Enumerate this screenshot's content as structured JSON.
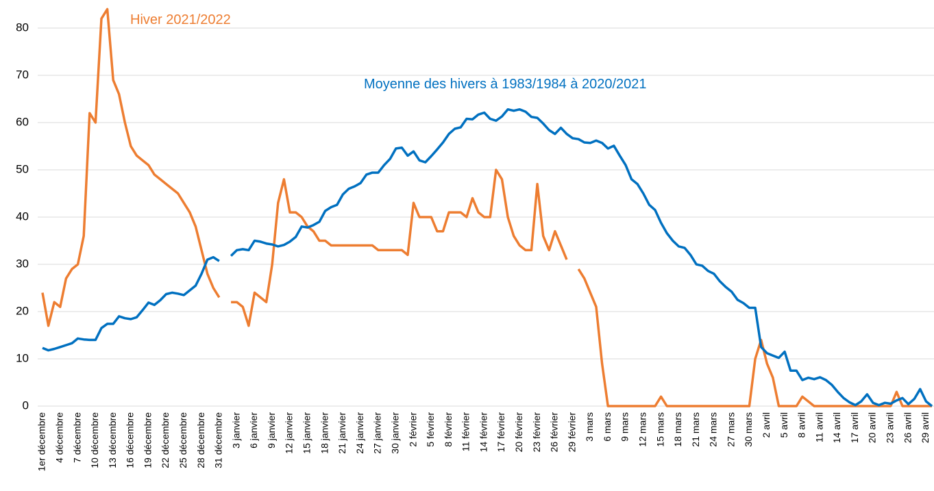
{
  "chart_data": {
    "type": "line",
    "annotations": [
      "Hiver 2021/2022",
      "Moyenne des hivers à 1983/1984 à 2020/2021"
    ],
    "categories": [
      "1er décembre",
      null,
      null,
      "4 décembre",
      null,
      null,
      "7 décembre",
      null,
      null,
      "10 décembre",
      null,
      null,
      "13 décembre",
      null,
      null,
      "16 décembre",
      null,
      null,
      "19 décembre",
      null,
      null,
      "22 décembre",
      null,
      null,
      "25 décembre",
      null,
      null,
      "28 décembre",
      null,
      null,
      "31 décembre",
      null,
      null,
      "3 janvier",
      null,
      null,
      "6 janvier",
      null,
      null,
      "9 janvier",
      null,
      null,
      "12 janvier",
      null,
      null,
      "15 janvier",
      null,
      null,
      "18 janvier",
      null,
      null,
      "21 janvier",
      null,
      null,
      "24 janvier",
      null,
      null,
      "27 janvier",
      null,
      null,
      "30 janvier",
      null,
      null,
      "2 février",
      null,
      null,
      "5 février",
      null,
      null,
      "8 février",
      null,
      null,
      "11 février",
      null,
      null,
      "14 février",
      null,
      null,
      "17 février",
      null,
      null,
      "20 février",
      null,
      null,
      "23 février",
      null,
      null,
      "26 février",
      null,
      null,
      "29 février",
      null,
      null,
      "3 mars",
      null,
      null,
      "6 mars",
      null,
      null,
      "9 mars",
      null,
      null,
      "12 mars",
      null,
      null,
      "15 mars",
      null,
      null,
      "18 mars",
      null,
      null,
      "21 mars",
      null,
      null,
      "24 mars",
      null,
      null,
      "27 mars",
      null,
      null,
      "30 mars",
      null,
      null,
      "2 avril",
      null,
      null,
      "5 avril",
      null,
      null,
      "8 avril",
      null,
      null,
      "11 avril",
      null,
      null,
      "14 avril",
      null,
      null,
      "17 avril",
      null,
      null,
      "20 avril",
      null,
      null,
      "23 avril",
      null,
      null,
      "26 avril",
      null,
      null,
      "29 avril",
      null
    ],
    "series": [
      {
        "name": "Hiver 2021/2022",
        "color": "#ed7d31",
        "values": [
          24,
          17,
          22,
          21,
          27,
          29,
          30,
          36,
          62,
          60,
          82,
          84,
          69,
          66,
          60,
          55,
          53,
          52,
          51,
          49,
          48,
          47,
          46,
          45,
          43,
          41,
          38,
          33,
          28,
          25,
          23,
          null,
          22,
          22,
          21,
          17,
          24,
          23,
          22,
          30,
          43,
          48,
          41,
          41,
          40,
          38,
          37,
          35,
          35,
          34,
          34,
          34,
          34,
          34,
          34,
          34,
          34,
          33,
          33,
          33,
          33,
          33,
          32,
          43,
          40,
          40,
          40,
          37,
          37,
          41,
          41,
          41,
          40,
          44,
          41,
          40,
          40,
          50,
          48,
          40,
          36,
          34,
          33,
          33,
          47,
          36,
          33,
          37,
          34,
          31,
          null,
          29,
          27,
          24,
          21,
          9,
          0,
          0,
          0,
          0,
          0,
          0,
          0,
          0,
          0,
          2,
          0,
          0,
          0,
          0,
          0,
          0,
          0,
          0,
          0,
          0,
          0,
          0,
          0,
          0,
          0,
          10,
          14,
          9,
          6,
          0,
          0,
          0,
          0,
          2,
          1,
          0,
          0,
          0,
          0,
          0,
          0,
          0,
          0,
          0,
          0,
          0,
          0,
          0,
          0,
          3,
          0,
          0,
          0,
          0,
          0,
          0
        ]
      },
      {
        "name": "Moyenne des hivers à 1983/1984 à 2020/2021",
        "color": "#0070c0",
        "values": [
          12.3,
          11.8,
          12.1,
          12.5,
          12.9,
          13.3,
          14.3,
          14.1,
          14.0,
          14.0,
          16.5,
          17.4,
          17.4,
          19,
          18.6,
          18.4,
          18.8,
          20.3,
          21.9,
          21.4,
          22.4,
          23.7,
          24,
          23.8,
          23.5,
          24.5,
          25.5,
          28,
          31,
          31.5,
          30.7,
          null,
          31.8,
          33,
          33.2,
          33,
          35,
          34.8,
          34.4,
          34.2,
          33.8,
          34.1,
          34.8,
          35.8,
          38,
          37.8,
          38.3,
          39,
          41.3,
          42.1,
          42.6,
          44.8,
          46,
          46.5,
          47.2,
          49,
          49.4,
          49.4,
          51,
          52.3,
          54.5,
          54.7,
          53,
          53.9,
          52,
          51.6,
          52.9,
          54.3,
          55.8,
          57.6,
          58.7,
          59,
          60.8,
          60.7,
          61.7,
          62.1,
          60.8,
          60.4,
          61.3,
          62.8,
          62.5,
          62.8,
          62.3,
          61.2,
          61,
          59.8,
          58.4,
          57.6,
          58.9,
          57.6,
          56.7,
          56.5,
          55.8,
          55.7,
          56.2,
          55.7,
          54.5,
          55.1,
          53,
          51,
          48,
          47,
          45,
          42.6,
          41.5,
          38.8,
          36.6,
          35,
          33.8,
          33.5,
          32,
          30,
          29.7,
          28.6,
          28,
          26.4,
          25.2,
          24.2,
          22.5,
          21.8,
          20.8,
          20.8,
          12.5,
          11.2,
          10.7,
          10.2,
          11.5,
          7.5,
          7.5,
          5.5,
          6,
          5.7,
          6.1,
          5.5,
          4.5,
          3,
          1.7,
          0.8,
          0.2,
          1,
          2.5,
          0.7,
          0.2,
          0.7,
          0.5,
          1.2,
          1.7,
          0.4,
          1.5,
          3.6,
          1,
          0
        ]
      }
    ],
    "ylim": [
      0,
      85
    ],
    "yticks": [
      0,
      10,
      20,
      30,
      40,
      50,
      60,
      70,
      80
    ],
    "grid": true
  }
}
